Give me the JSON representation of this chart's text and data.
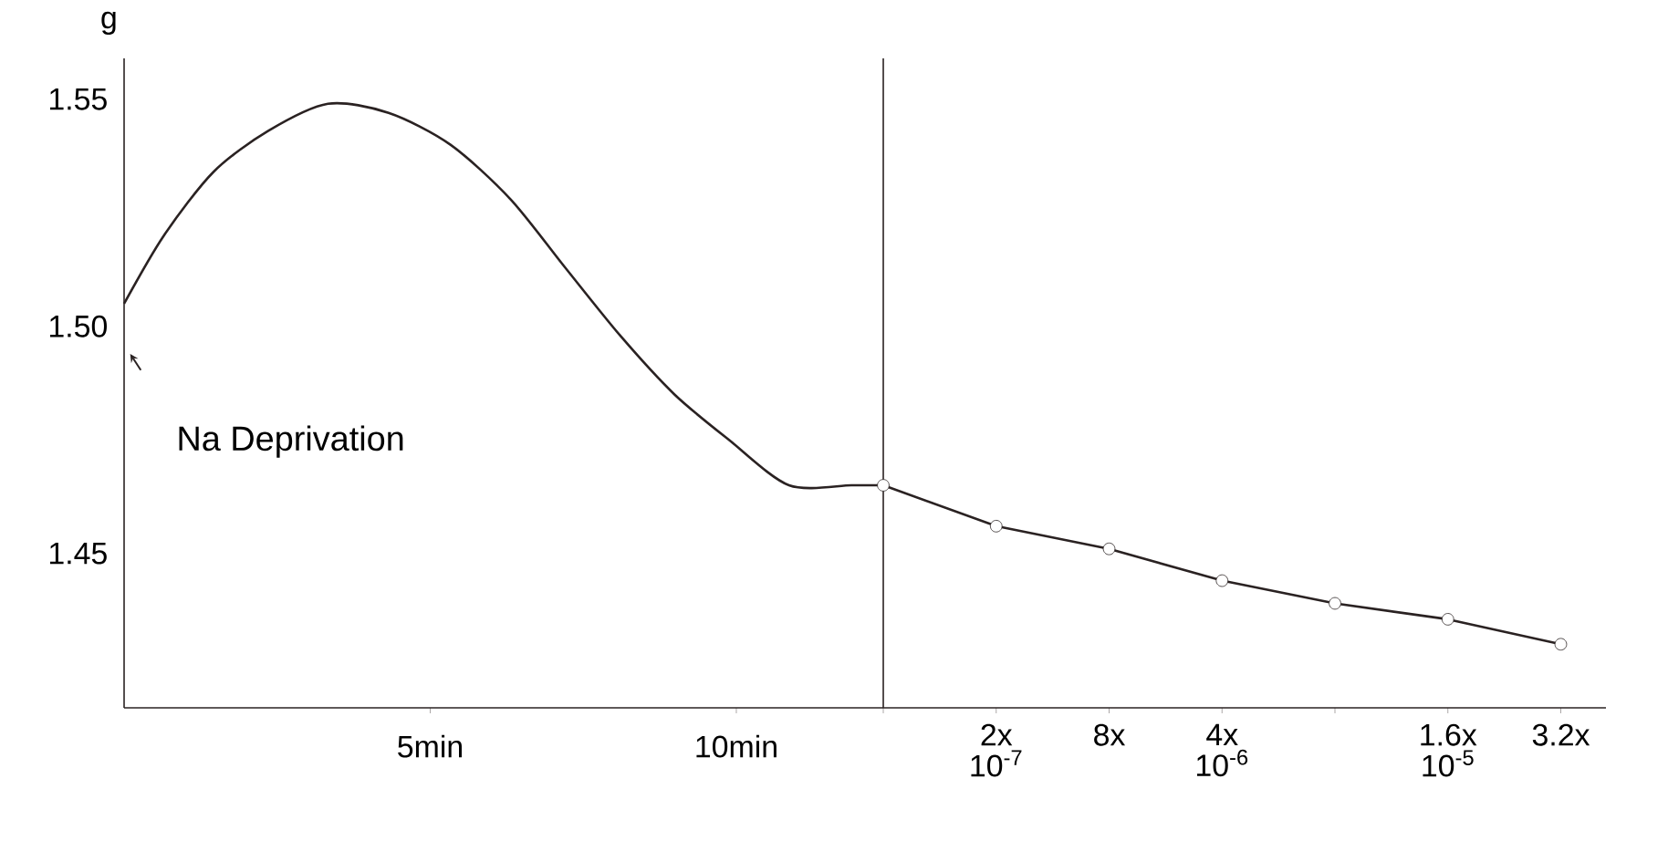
{
  "chart_data": [
    {
      "type": "line",
      "color": "#2a2222",
      "ylabel": "g",
      "annotations": [
        "Na Deprivation"
      ],
      "x": [
        0,
        0.65,
        1.46,
        2.35,
        3.33,
        4.32,
        5.33,
        6.31,
        7.2,
        8.1,
        8.99,
        9.88,
        10.86,
        11.88,
        12.38
      ],
      "values": [
        1.505,
        1.52,
        1.534,
        1.543,
        1.549,
        1.547,
        1.54,
        1.528,
        1.513,
        1.498,
        1.485,
        1.475,
        1.465,
        1.465,
        1.465
      ],
      "xlim": [
        0,
        12.4
      ],
      "xticks": [
        {
          "value": 5,
          "label": "5min"
        },
        {
          "value": 10,
          "label": "10min"
        }
      ],
      "ylim": [
        1.416,
        1.559
      ],
      "yticks": [
        1.45,
        {
          "value": 1.5,
          "label": "1.50"
        },
        1.55
      ]
    },
    {
      "type": "line",
      "color": "#2a2222",
      "marker": "circle",
      "tick_labels": "x",
      "categories": [
        null,
        "2x 10$^{-7}$",
        "8x",
        "4x 10$^{-6}$",
        null,
        "1.6x 10$^{-5}$",
        "3.2x"
      ],
      "values": [
        1.465,
        1.456,
        1.451,
        1.444,
        1.439,
        1.4355,
        1.43
      ],
      "ylim": [
        1.416,
        1.559
      ]
    }
  ]
}
